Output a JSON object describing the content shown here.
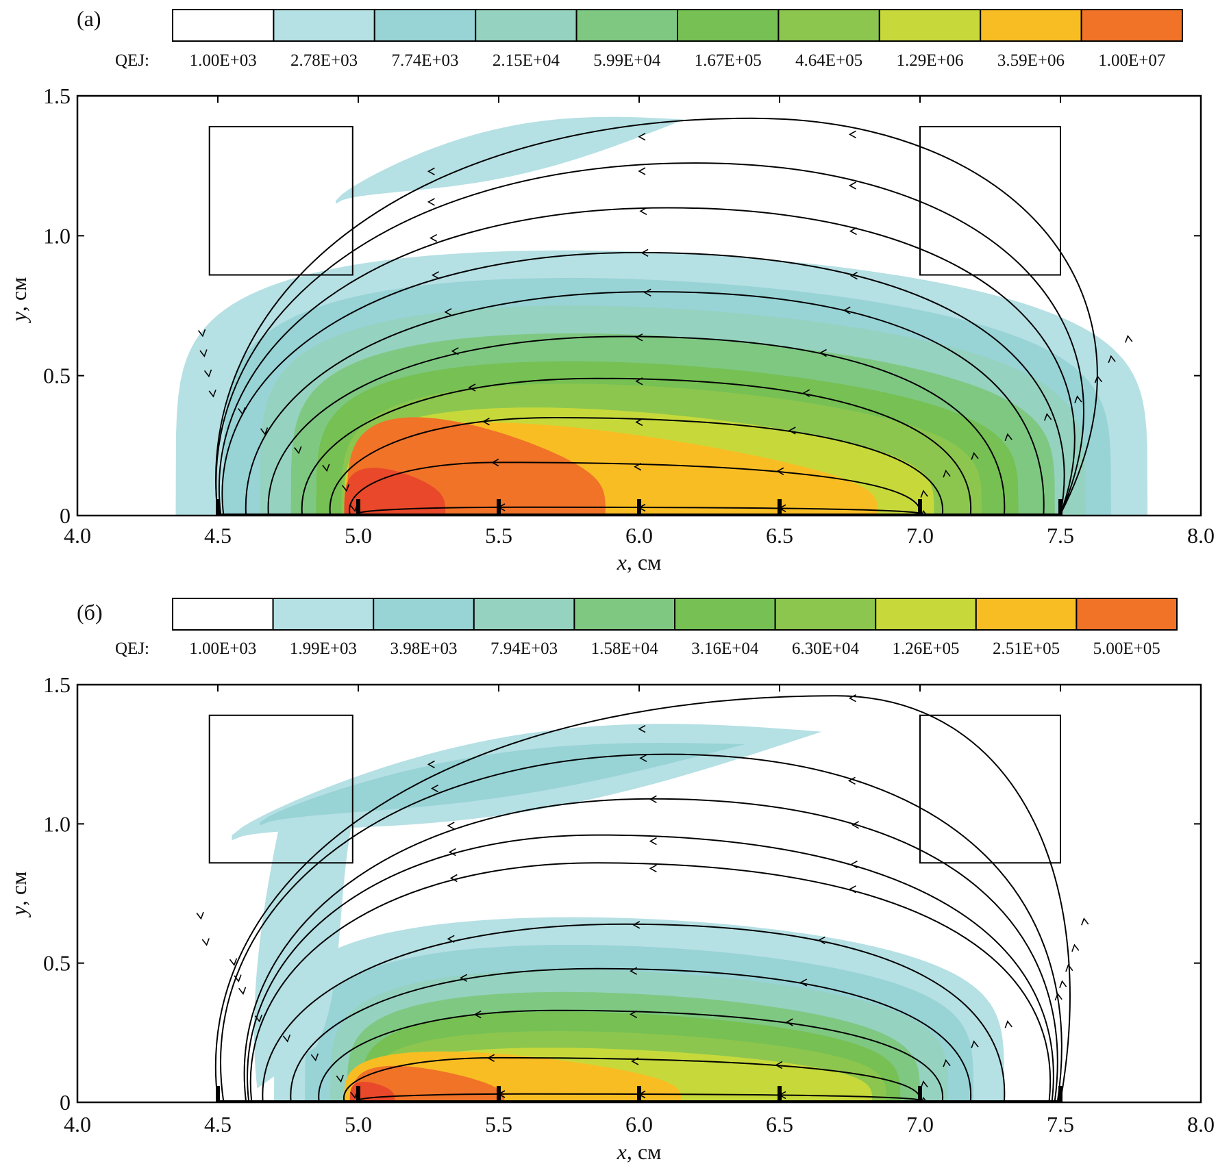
{
  "chart_data": [
    {
      "type": "heatmap",
      "panel_label": "(a)",
      "colorbar_label": "QEJ:",
      "colorbar_levels": [
        "1.00E+03",
        "2.78E+03",
        "7.74E+03",
        "2.15E+04",
        "5.99E+04",
        "1.67E+05",
        "4.64E+05",
        "1.29E+06",
        "3.59E+06",
        "1.00E+07"
      ],
      "xlabel_var": "x",
      "xlabel_unit": ", см",
      "ylabel_var": "y",
      "ylabel_unit": ", см",
      "xlim": [
        4.0,
        8.0
      ],
      "ylim": [
        0,
        1.5
      ],
      "xticks": [
        "4.0",
        "4.5",
        "5.0",
        "5.5",
        "6.0",
        "6.5",
        "7.0",
        "7.5",
        "8.0"
      ],
      "yticks": [
        "0",
        "0.5",
        "1.0",
        "1.5"
      ],
      "electrodes_x": [
        4.5,
        5.0,
        5.5,
        6.0,
        6.5,
        7.0,
        7.5
      ],
      "boxes": [
        {
          "x0": 4.47,
          "x1": 4.98,
          "y0": 0.86,
          "y1": 1.39
        },
        {
          "x0": 7.0,
          "x1": 7.5,
          "y0": 0.86,
          "y1": 1.39
        }
      ],
      "regions": [
        {
          "level": 1,
          "cx": 6.08,
          "rx": 1.73,
          "top": 0.94,
          "skew": 0.1,
          "pw": 0.38
        },
        {
          "level": 2,
          "cx": 6.1,
          "rx": 1.58,
          "top": 0.84,
          "skew": 0.12,
          "pw": 0.4
        },
        {
          "level": 3,
          "cx": 6.12,
          "rx": 1.47,
          "top": 0.74,
          "skew": 0.14,
          "pw": 0.42
        },
        {
          "level": 4,
          "cx": 6.12,
          "rx": 1.36,
          "top": 0.64,
          "skew": 0.16,
          "pw": 0.44
        },
        {
          "level": 5,
          "cx": 6.1,
          "rx": 1.25,
          "top": 0.54,
          "skew": 0.18,
          "pw": 0.46
        },
        {
          "level": 6,
          "cx": 6.08,
          "rx": 1.14,
          "top": 0.46,
          "skew": 0.2,
          "pw": 0.48
        },
        {
          "level": 7,
          "cx": 6.0,
          "rx": 1.05,
          "top": 0.37,
          "skew": 0.28,
          "pw": 0.5
        },
        {
          "level": 8,
          "cx": 5.9,
          "rx": 0.95,
          "top": 0.3,
          "skew": 0.5,
          "pw": 0.55
        },
        {
          "level": 9,
          "cx": 5.42,
          "rx": 0.46,
          "top": 0.32,
          "skew": 0.45,
          "pw": 0.5
        },
        {
          "level": 10,
          "cx": 5.13,
          "rx": 0.18,
          "top": 0.16,
          "skew": 0.35,
          "pw": 0.5
        }
      ],
      "upper_band": {
        "level": 1,
        "x0": 4.92,
        "x1": 6.25,
        "y0": 1.12,
        "y1": 1.43,
        "w": 0.09
      },
      "streamlines_closed": [
        {
          "x0": 5.0,
          "x1": 7.0,
          "peak_x": 5.6,
          "peak_y": 0.03
        },
        {
          "x0": 4.97,
          "x1": 7.0,
          "peak_x": 5.5,
          "peak_y": 0.19
        },
        {
          "x0": 4.9,
          "x1": 7.08,
          "peak_x": 5.7,
          "peak_y": 0.35
        },
        {
          "x0": 4.8,
          "x1": 7.18,
          "peak_x": 5.85,
          "peak_y": 0.49
        },
        {
          "x0": 4.68,
          "x1": 7.3,
          "peak_x": 5.95,
          "peak_y": 0.64
        },
        {
          "x0": 4.6,
          "x1": 7.44,
          "peak_x": 6.05,
          "peak_y": 0.8
        }
      ],
      "streamlines_outer": [
        {
          "x0": 4.52,
          "x1": 7.5,
          "peak_x": 6.0,
          "peak_y": 0.94,
          "left_bulge": 0.06,
          "right_bulge": 0.1
        },
        {
          "x0": 4.51,
          "x1": 7.5,
          "peak_x": 6.1,
          "peak_y": 1.1,
          "left_bulge": 0.07,
          "right_bulge": 0.22
        },
        {
          "x0": 4.5,
          "x1": 7.5,
          "peak_x": 6.2,
          "peak_y": 1.26,
          "left_bulge": 0.08,
          "right_bulge": 0.3
        },
        {
          "x0": 4.5,
          "x1": 7.5,
          "peak_x": 6.4,
          "peak_y": 1.42,
          "left_bulge": 0.09,
          "right_bulge": 0.4
        }
      ]
    },
    {
      "type": "heatmap",
      "panel_label": "(б)",
      "colorbar_label": "QEJ:",
      "colorbar_levels": [
        "1.00E+03",
        "1.99E+03",
        "3.98E+03",
        "7.94E+03",
        "1.58E+04",
        "3.16E+04",
        "6.30E+04",
        "1.26E+05",
        "2.51E+05",
        "5.00E+05"
      ],
      "xlabel_var": "x",
      "xlabel_unit": ", см",
      "ylabel_var": "y",
      "ylabel_unit": ", см",
      "xlim": [
        4.0,
        8.0
      ],
      "ylim": [
        0,
        1.5
      ],
      "xticks": [
        "4.0",
        "4.5",
        "5.0",
        "5.5",
        "6.0",
        "6.5",
        "7.0",
        "7.5",
        "8.0"
      ],
      "yticks": [
        "0",
        "0.5",
        "1.0",
        "1.5"
      ],
      "electrodes_x": [
        4.5,
        5.0,
        5.5,
        6.0,
        6.5,
        7.0,
        7.5
      ],
      "boxes": [
        {
          "x0": 4.47,
          "x1": 4.98,
          "y0": 0.86,
          "y1": 1.39
        },
        {
          "x0": 7.0,
          "x1": 7.5,
          "y0": 0.86,
          "y1": 1.39
        }
      ],
      "regions": [
        {
          "level": 1,
          "cx": 6.0,
          "rx": 1.3,
          "top": 0.66,
          "skew": 0.1,
          "pw": 0.42
        },
        {
          "level": 2,
          "cx": 6.0,
          "rx": 1.19,
          "top": 0.56,
          "skew": 0.12,
          "pw": 0.44
        },
        {
          "level": 3,
          "cx": 6.0,
          "rx": 1.1,
          "top": 0.47,
          "skew": 0.14,
          "pw": 0.46
        },
        {
          "level": 4,
          "cx": 5.98,
          "rx": 1.02,
          "top": 0.39,
          "skew": 0.16,
          "pw": 0.48
        },
        {
          "level": 5,
          "cx": 5.97,
          "rx": 0.96,
          "top": 0.32,
          "skew": 0.18,
          "pw": 0.5
        },
        {
          "level": 6,
          "cx": 5.96,
          "rx": 0.92,
          "top": 0.25,
          "skew": 0.2,
          "pw": 0.52
        },
        {
          "level": 7,
          "cx": 5.95,
          "rx": 0.88,
          "top": 0.19,
          "skew": 0.25,
          "pw": 0.55
        },
        {
          "level": 8,
          "cx": 5.55,
          "rx": 0.6,
          "top": 0.17,
          "skew": 0.4,
          "pw": 0.55
        },
        {
          "level": 9,
          "cx": 5.25,
          "rx": 0.27,
          "top": 0.12,
          "skew": 0.45,
          "pw": 0.55
        },
        {
          "level": 10,
          "cx": 5.05,
          "rx": 0.08,
          "top": 0.07,
          "skew": 0.3,
          "pw": 0.5
        }
      ],
      "upper_band": {
        "level": 1,
        "x0": 4.55,
        "x1": 6.8,
        "y0": 0.95,
        "y1": 1.35,
        "w": 0.14
      },
      "upper_band2": {
        "level": 2,
        "x0": 4.65,
        "x1": 6.5,
        "y0": 1.0,
        "y1": 1.3,
        "w": 0.08
      },
      "streamlines_closed": [
        {
          "x0": 5.0,
          "x1": 7.0,
          "peak_x": 5.6,
          "peak_y": 0.03
        },
        {
          "x0": 4.95,
          "x1": 7.0,
          "peak_x": 5.5,
          "peak_y": 0.16
        },
        {
          "x0": 4.86,
          "x1": 7.08,
          "peak_x": 5.7,
          "peak_y": 0.33
        },
        {
          "x0": 4.76,
          "x1": 7.18,
          "peak_x": 5.85,
          "peak_y": 0.48
        },
        {
          "x0": 4.66,
          "x1": 7.3,
          "peak_x": 5.95,
          "peak_y": 0.64
        }
      ],
      "streamlines_outer": [
        {
          "x0": 4.62,
          "x1": 7.46,
          "peak_x": 5.85,
          "peak_y": 0.86,
          "left_bulge": 0.05,
          "right_bulge": 0.05
        },
        {
          "x0": 4.61,
          "x1": 7.47,
          "peak_x": 5.85,
          "peak_y": 0.96,
          "left_bulge": 0.06,
          "right_bulge": 0.06
        },
        {
          "x0": 4.6,
          "x1": 7.48,
          "peak_x": 6.05,
          "peak_y": 1.09,
          "left_bulge": 0.07,
          "right_bulge": 0.08
        },
        {
          "x0": 4.52,
          "x1": 7.49,
          "peak_x": 6.1,
          "peak_y": 1.25,
          "left_bulge": 0.1,
          "right_bulge": 0.1
        },
        {
          "x0": 4.5,
          "x1": 7.5,
          "peak_x": 6.7,
          "peak_y": 1.46,
          "left_bulge": 0.1,
          "right_bulge": 0.14
        }
      ]
    }
  ],
  "palette": [
    "#ffffff",
    "#b5e0e4",
    "#98d3d6",
    "#96d2c0",
    "#7fc882",
    "#76c054",
    "#8cc64f",
    "#c7d93a",
    "#f9bd24",
    "#f07328",
    "#e9482a"
  ]
}
